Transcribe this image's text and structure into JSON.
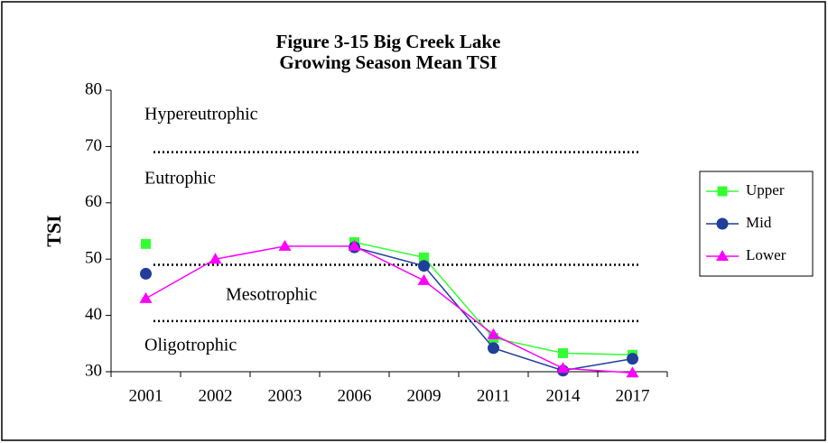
{
  "chart_data": {
    "type": "line",
    "title": [
      "Figure 3-15 Big Creek Lake",
      "Growing Season Mean TSI"
    ],
    "y_label": "TSI",
    "categories": [
      "2001",
      "2002",
      "2003",
      "2006",
      "2009",
      "2011",
      "2014",
      "2017"
    ],
    "series": [
      {
        "name": "Upper",
        "color": "#33ff33",
        "marker": "square",
        "values": [
          52.7,
          null,
          null,
          53.0,
          50.3,
          36.0,
          33.3,
          33.0
        ]
      },
      {
        "name": "Mid",
        "color": "#1f3f99",
        "marker": "circle",
        "values": [
          47.4,
          null,
          null,
          52.1,
          48.8,
          34.2,
          30.2,
          32.3
        ]
      },
      {
        "name": "Lower",
        "color": "#ff00ff",
        "marker": "triangle",
        "values": [
          43.0,
          50.0,
          52.3,
          52.3,
          46.2,
          36.6,
          30.6,
          29.8
        ]
      }
    ],
    "ylim": [
      30,
      80
    ],
    "yticks": [
      30,
      40,
      50,
      60,
      70,
      80
    ],
    "reference_lines": [
      69,
      49,
      39
    ],
    "zones": [
      "Hypereutrophic",
      "Eutrophic",
      "Mesotrophic",
      "Oligotrophic"
    ],
    "legend": "right"
  }
}
